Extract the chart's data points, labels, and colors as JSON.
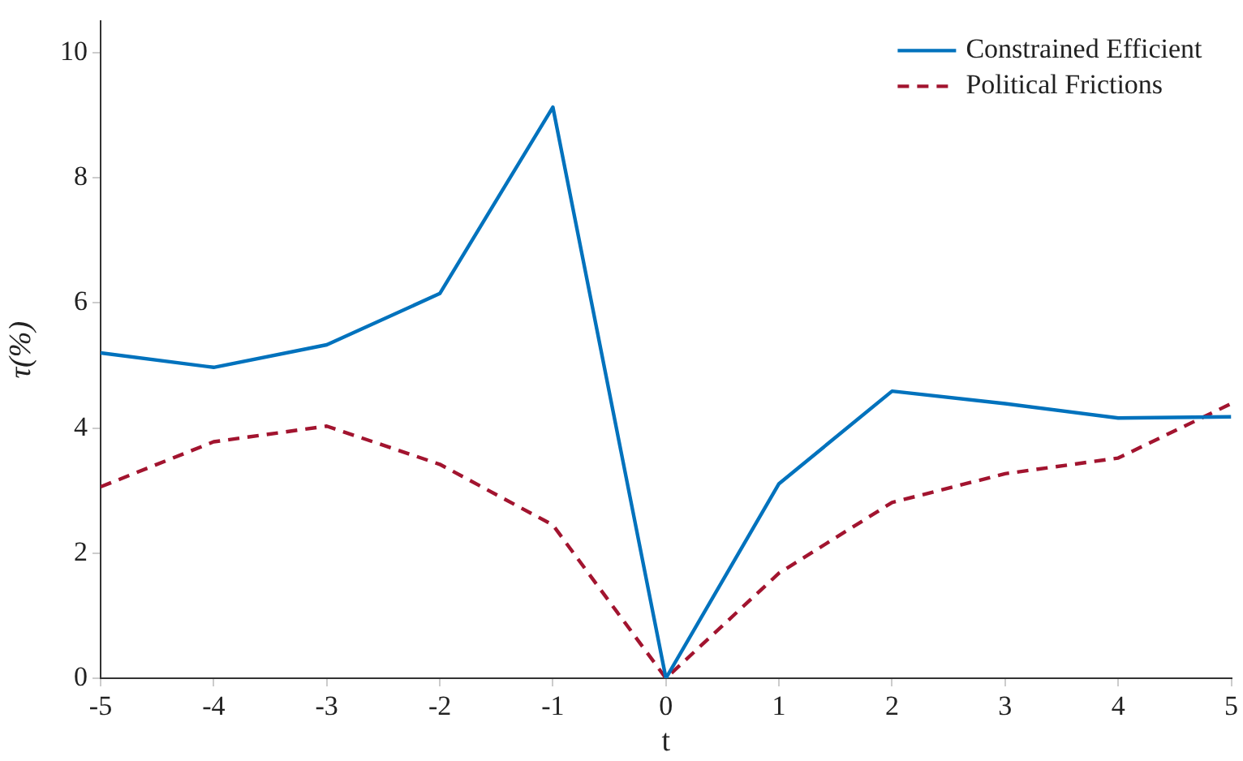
{
  "chart_data": {
    "type": "line",
    "xlabel": "t",
    "ylabel": "τ(%)",
    "x": [
      -5,
      -4,
      -3,
      -2,
      -1,
      0,
      1,
      2,
      3,
      4,
      5
    ],
    "xlim": [
      -5,
      5
    ],
    "xticks": [
      -5,
      -4,
      -3,
      -2,
      -1,
      0,
      1,
      2,
      3,
      4,
      5
    ],
    "ylim": [
      0,
      10.5
    ],
    "yticks": [
      0,
      2,
      4,
      6,
      8,
      10
    ],
    "grid": false,
    "legend": "top right",
    "marker": "none",
    "series": [
      {
        "name": "Constrained Efficient",
        "color": "#0072bd",
        "line_style": "solid",
        "values": [
          5.2,
          4.97,
          5.33,
          6.15,
          9.13,
          0,
          3.11,
          4.59,
          4.39,
          4.16,
          4.18
        ]
      },
      {
        "name": "Political Frictions",
        "color": "#a2142f",
        "line_style": "dashed",
        "values": [
          3.06,
          3.78,
          4.03,
          3.42,
          2.45,
          0,
          1.68,
          2.81,
          3.27,
          3.52,
          4.39
        ]
      }
    ]
  }
}
